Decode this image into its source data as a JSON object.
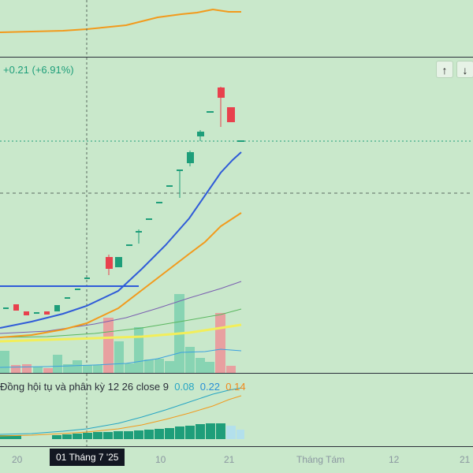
{
  "header": {
    "change_text": "+0.21 (+6.91%)",
    "up_arrow": "↑",
    "down_arrow": "↓"
  },
  "macd_legend": {
    "name": "Đồng hội tụ và phân kỳ",
    "params": "12 26 close 9",
    "value1": "0.08",
    "value2": "0.22",
    "value3": "0.14"
  },
  "time_axis": {
    "ticks": [
      "20",
      "10",
      "21",
      "Tháng Tám",
      "12",
      "21"
    ],
    "crosshair_label": "01 Tháng 7 '25"
  },
  "colors": {
    "up": "#1e9e7a",
    "down": "#e8414d",
    "ema_fast": "#2f5bd8",
    "ema_slow": "#f29a1c",
    "background": "#c9e8cb"
  },
  "icons": [
    "up-arrow-icon",
    "down-arrow-icon"
  ]
}
